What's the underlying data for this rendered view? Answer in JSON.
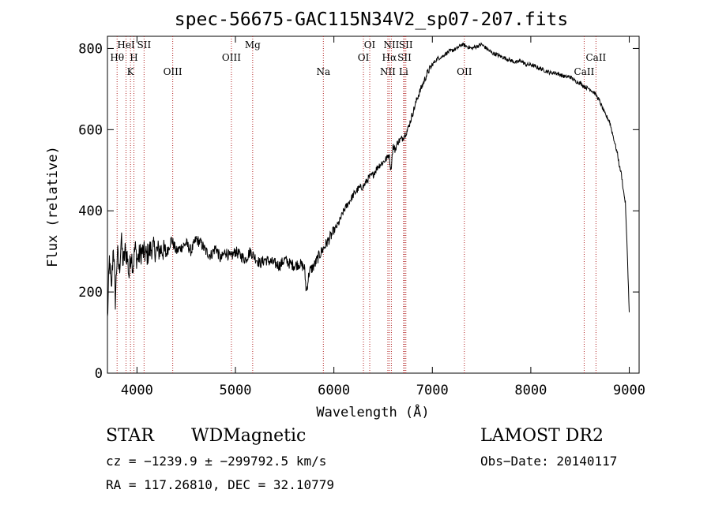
{
  "chart_data": {
    "type": "line",
    "title": "spec-56675-GAC115N34V2_sp07-207.fits",
    "xlabel": "Wavelength (Å)",
    "ylabel": "Flux (relative)",
    "xlim": [
      3700,
      9100
    ],
    "ylim": [
      0,
      830
    ],
    "x_ticks": [
      4000,
      5000,
      6000,
      7000,
      8000,
      9000
    ],
    "y_ticks": [
      0,
      200,
      400,
      600,
      800
    ],
    "grid": false,
    "line_color": "#000000",
    "marker_color": "#b22222",
    "series": [
      {
        "x": [
          3700,
          3720,
          3740,
          3760,
          3780,
          3800,
          3820,
          3840,
          3860,
          3880,
          3900,
          3920,
          3940,
          3960,
          3980,
          4000,
          4050,
          4100,
          4150,
          4200,
          4250,
          4300,
          4350,
          4400,
          4450,
          4500,
          4550,
          4600,
          4650,
          4700,
          4750,
          4800,
          4850,
          4900,
          4950,
          5000,
          5050,
          5100,
          5150,
          5200,
          5250,
          5300,
          5350,
          5400,
          5450,
          5500,
          5550,
          5600,
          5650,
          5700,
          5720,
          5750,
          5800,
          5850,
          5900,
          5950,
          6000,
          6050,
          6100,
          6150,
          6200,
          6250,
          6300,
          6350,
          6400,
          6450,
          6500,
          6540,
          6560,
          6580,
          6600,
          6620,
          6650,
          6700,
          6750,
          6800,
          6850,
          6900,
          6950,
          7000,
          7050,
          7100,
          7150,
          7200,
          7250,
          7300,
          7350,
          7400,
          7450,
          7500,
          7550,
          7600,
          7650,
          7700,
          7750,
          7800,
          7850,
          7900,
          7950,
          8000,
          8050,
          8100,
          8150,
          8200,
          8250,
          8300,
          8350,
          8400,
          8450,
          8500,
          8550,
          8600,
          8650,
          8700,
          8750,
          8800,
          8820,
          8840,
          8860,
          8880,
          8900,
          8920,
          8940,
          8960,
          8980,
          9000
        ],
        "y": [
          130,
          280,
          200,
          320,
          180,
          300,
          250,
          330,
          270,
          300,
          290,
          240,
          300,
          260,
          310,
          280,
          300,
          290,
          310,
          300,
          305,
          295,
          330,
          300,
          310,
          320,
          300,
          330,
          320,
          300,
          290,
          310,
          280,
          300,
          285,
          300,
          290,
          280,
          300,
          285,
          270,
          280,
          275,
          270,
          265,
          280,
          270,
          265,
          270,
          260,
          200,
          250,
          265,
          290,
          310,
          330,
          350,
          370,
          400,
          420,
          440,
          455,
          460,
          480,
          490,
          510,
          520,
          530,
          540,
          500,
          560,
          550,
          570,
          580,
          600,
          640,
          680,
          710,
          740,
          760,
          775,
          780,
          790,
          795,
          800,
          810,
          805,
          800,
          805,
          810,
          800,
          790,
          785,
          780,
          775,
          770,
          765,
          770,
          760,
          760,
          755,
          750,
          745,
          740,
          740,
          735,
          730,
          730,
          720,
          715,
          705,
          700,
          690,
          670,
          640,
          620,
          600,
          580,
          560,
          540,
          510,
          490,
          450,
          420,
          300,
          150
        ]
      }
    ],
    "lines": [
      {
        "name": "Hθ",
        "wavelength": 3798,
        "row": 2
      },
      {
        "name": "HeI",
        "wavelength": 3889,
        "row": 1
      },
      {
        "name": "K",
        "wavelength": 3934,
        "row": 3
      },
      {
        "name": "H",
        "wavelength": 3969,
        "row": 2
      },
      {
        "name": "SII",
        "wavelength": 4072,
        "row": 1
      },
      {
        "name": "OIII",
        "wavelength": 4363,
        "row": 3
      },
      {
        "name": "OIII",
        "wavelength": 4959,
        "row": 2
      },
      {
        "name": "Mg",
        "wavelength": 5175,
        "row": 1
      },
      {
        "name": "Na",
        "wavelength": 5893,
        "row": 3
      },
      {
        "name": "OI",
        "wavelength": 6300,
        "row": 2
      },
      {
        "name": "OI",
        "wavelength": 6364,
        "row": 1
      },
      {
        "name": "NII",
        "wavelength": 6548,
        "row": 3
      },
      {
        "name": "NII",
        "wavelength": 6584,
        "row": 1
      },
      {
        "name": "Hα",
        "wavelength": 6563,
        "row": 2
      },
      {
        "name": "SII",
        "wavelength": 6717,
        "row": 2
      },
      {
        "name": "SII",
        "wavelength": 6731,
        "row": 1
      },
      {
        "name": "Li",
        "wavelength": 6708,
        "row": 3
      },
      {
        "name": "OII",
        "wavelength": 7325,
        "row": 3
      },
      {
        "name": "CaII",
        "wavelength": 8542,
        "row": 3
      },
      {
        "name": "CaII",
        "wavelength": 8662,
        "row": 2
      }
    ]
  },
  "info": {
    "object_class": "STAR",
    "subclass": "WDMagnetic",
    "survey": "LAMOST DR2",
    "cz": "cz = −1239.9 ± −299792.5 km/s",
    "obs_date": "Obs−Date: 20140117",
    "radec": "RA = 117.26810, DEC =  32.10779"
  }
}
